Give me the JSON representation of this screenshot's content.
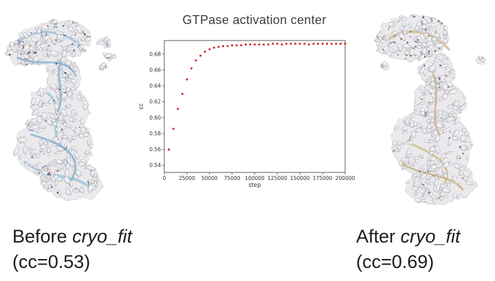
{
  "chart_data": {
    "type": "scatter",
    "title": "GTPase activation center",
    "xlabel": "step",
    "ylabel": "cc",
    "marker_color": "#cc2121",
    "axis_color": "#4a4a4a",
    "grid": false,
    "legend": null,
    "xlim": [
      0,
      200000
    ],
    "ylim": [
      0.531,
      0.697
    ],
    "xticks": [
      0,
      25000,
      50000,
      75000,
      100000,
      125000,
      150000,
      175000,
      200000
    ],
    "yticks": [
      0.54,
      0.56,
      0.58,
      0.6,
      0.62,
      0.64,
      0.66,
      0.68
    ],
    "x": [
      5000,
      10000,
      15000,
      20000,
      25000,
      30000,
      35000,
      40000,
      45000,
      50000,
      55000,
      60000,
      65000,
      70000,
      75000,
      80000,
      85000,
      90000,
      95000,
      100000,
      105000,
      110000,
      115000,
      120000,
      125000,
      130000,
      135000,
      140000,
      145000,
      150000,
      155000,
      160000,
      165000,
      170000,
      175000,
      180000,
      185000,
      190000,
      195000,
      200000
    ],
    "y": [
      0.56,
      0.586,
      0.611,
      0.63,
      0.648,
      0.662,
      0.672,
      0.678,
      0.683,
      0.686,
      0.688,
      0.689,
      0.69,
      0.69,
      0.691,
      0.691,
      0.691,
      0.692,
      0.692,
      0.692,
      0.692,
      0.692,
      0.692,
      0.693,
      0.693,
      0.692,
      0.693,
      0.693,
      0.693,
      0.693,
      0.693,
      0.692,
      0.693,
      0.693,
      0.693,
      0.693,
      0.693,
      0.693,
      0.693,
      0.693
    ]
  },
  "captions": {
    "before": {
      "prefix": "Before ",
      "emph": "cryo_fit",
      "line2": "(cc=0.53)"
    },
    "after": {
      "prefix": "After ",
      "emph": "cryo_fit",
      "line2": "(cc=0.69)"
    }
  },
  "images": {
    "before_name": "cryo-em-map-before-fitting",
    "after_name": "cryo-em-map-after-fitting"
  }
}
